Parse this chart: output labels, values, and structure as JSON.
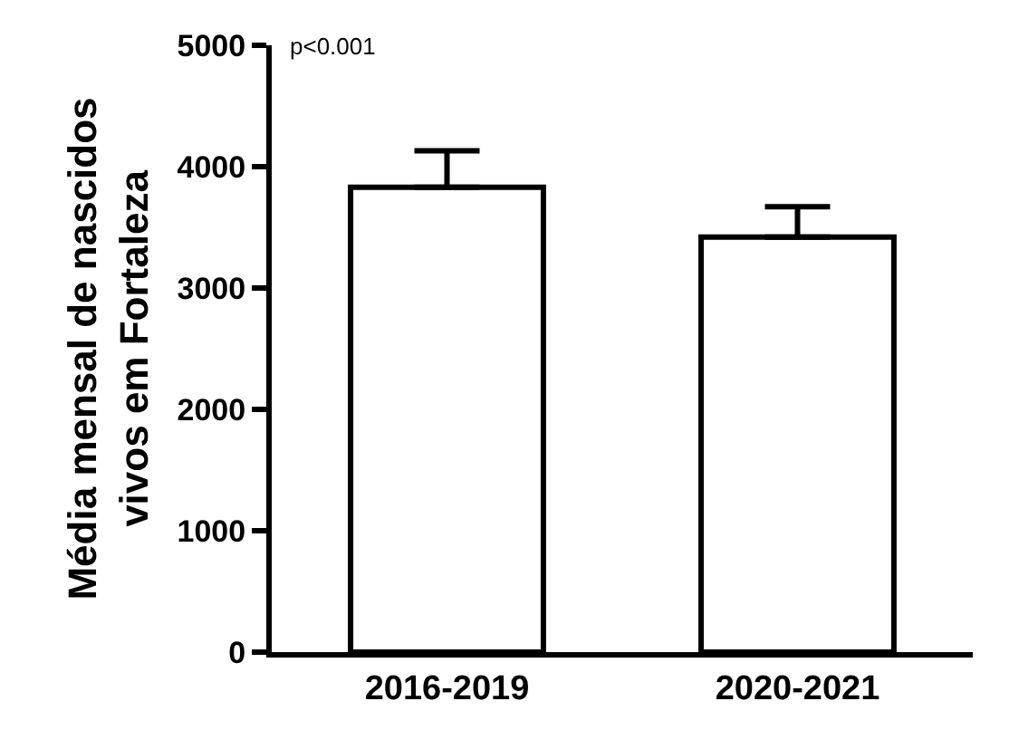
{
  "chart_data": {
    "type": "bar",
    "ylabel": "Média mensal de nascidos\nvivos em Fortaleza",
    "categories": [
      "2016-2019",
      "2020-2021"
    ],
    "values": [
      3830,
      3420
    ],
    "errors": [
      [
        3830,
        4130
      ],
      [
        3420,
        3670
      ]
    ],
    "color": "#ffffff",
    "ylim": [
      0,
      5000
    ],
    "yticks": [
      0,
      1000,
      2000,
      3000,
      4000,
      5000
    ],
    "annotations": [
      "p<0.001"
    ]
  }
}
